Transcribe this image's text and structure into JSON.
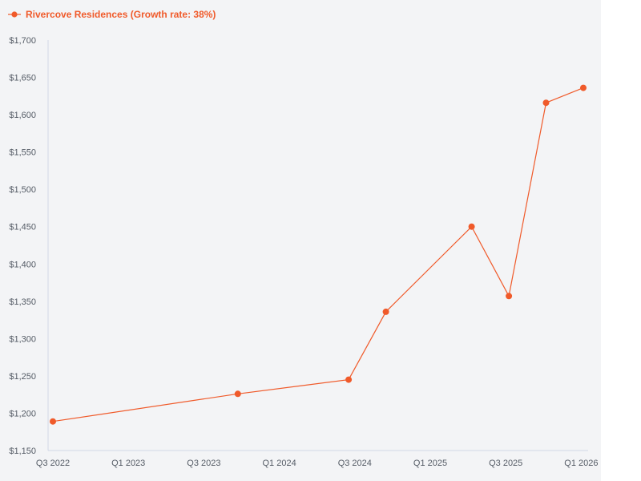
{
  "chart_data": {
    "type": "line",
    "legend": {
      "label": "Rivercove Residences (Growth rate: 38%)",
      "placement": "top-left"
    },
    "series": [
      {
        "name": "Rivercove Residences (Growth rate: 38%)",
        "color": "#f05a2a",
        "points": [
          {
            "x": "2022-07-01",
            "y": 1189
          },
          {
            "x": "2023-10-01",
            "y": 1226
          },
          {
            "x": "2024-07-01",
            "y": 1245
          },
          {
            "x": "2024-10-01",
            "y": 1336
          },
          {
            "x": "2025-05-01",
            "y": 1450
          },
          {
            "x": "2025-08-01",
            "y": 1357
          },
          {
            "x": "2025-11-01",
            "y": 1616
          },
          {
            "x": "2026-02-01",
            "y": 1636
          }
        ]
      }
    ],
    "x_ticks": [
      "Q3 2022",
      "Q1 2023",
      "Q3 2023",
      "Q1 2024",
      "Q3 2024",
      "Q1 2025",
      "Q3 2025",
      "Q1 2026"
    ],
    "x_range": [
      "2022-07-01",
      "2026-02-01"
    ],
    "y_ticks": [
      "$1,150",
      "$1,200",
      "$1,250",
      "$1,300",
      "$1,350",
      "$1,400",
      "$1,450",
      "$1,500",
      "$1,550",
      "$1,600",
      "$1,650",
      "$1,700"
    ],
    "ylim": [
      1150,
      1700
    ],
    "grid": false,
    "background": "#f3f4f6"
  }
}
